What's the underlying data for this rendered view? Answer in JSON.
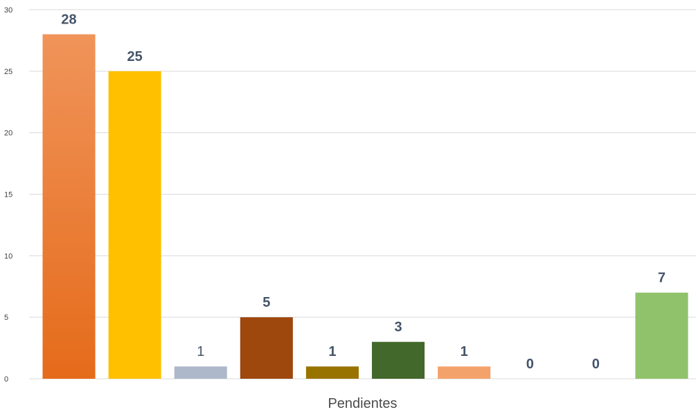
{
  "chart_data": {
    "type": "bar",
    "categories": [
      "Pendientes"
    ],
    "series": [
      {
        "value": 28,
        "color_top": "#f0945a",
        "color_bottom": "#e56b1a",
        "label_bold": true
      },
      {
        "value": 25,
        "color_top": "#ffc000",
        "color_bottom": "#ffc000",
        "label_bold": true
      },
      {
        "value": 1,
        "color_top": "#adb9ca",
        "color_bottom": "#adb9ca",
        "label_bold": false
      },
      {
        "value": 5,
        "color_top": "#9e480e",
        "color_bottom": "#9e480e",
        "label_bold": true
      },
      {
        "value": 1,
        "color_top": "#997300",
        "color_bottom": "#997300",
        "label_bold": true
      },
      {
        "value": 3,
        "color_top": "#43682b",
        "color_bottom": "#43682b",
        "label_bold": true
      },
      {
        "value": 1,
        "color_top": "#f4a26b",
        "color_bottom": "#f4a26b",
        "label_bold": true
      },
      {
        "value": 0,
        "color_top": "#ffcd33",
        "color_bottom": "#ffcd33",
        "label_bold": true
      },
      {
        "value": 0,
        "color_top": "#8497b0",
        "color_bottom": "#8497b0",
        "label_bold": true
      },
      {
        "value": 7,
        "color_top": "#8fc26b",
        "color_bottom": "#8fc26b",
        "label_bold": true
      }
    ],
    "ylim": [
      0,
      30
    ],
    "yticks": [
      0,
      5,
      10,
      15,
      20,
      25,
      30
    ],
    "grid": true,
    "label_color": "#44546a"
  }
}
